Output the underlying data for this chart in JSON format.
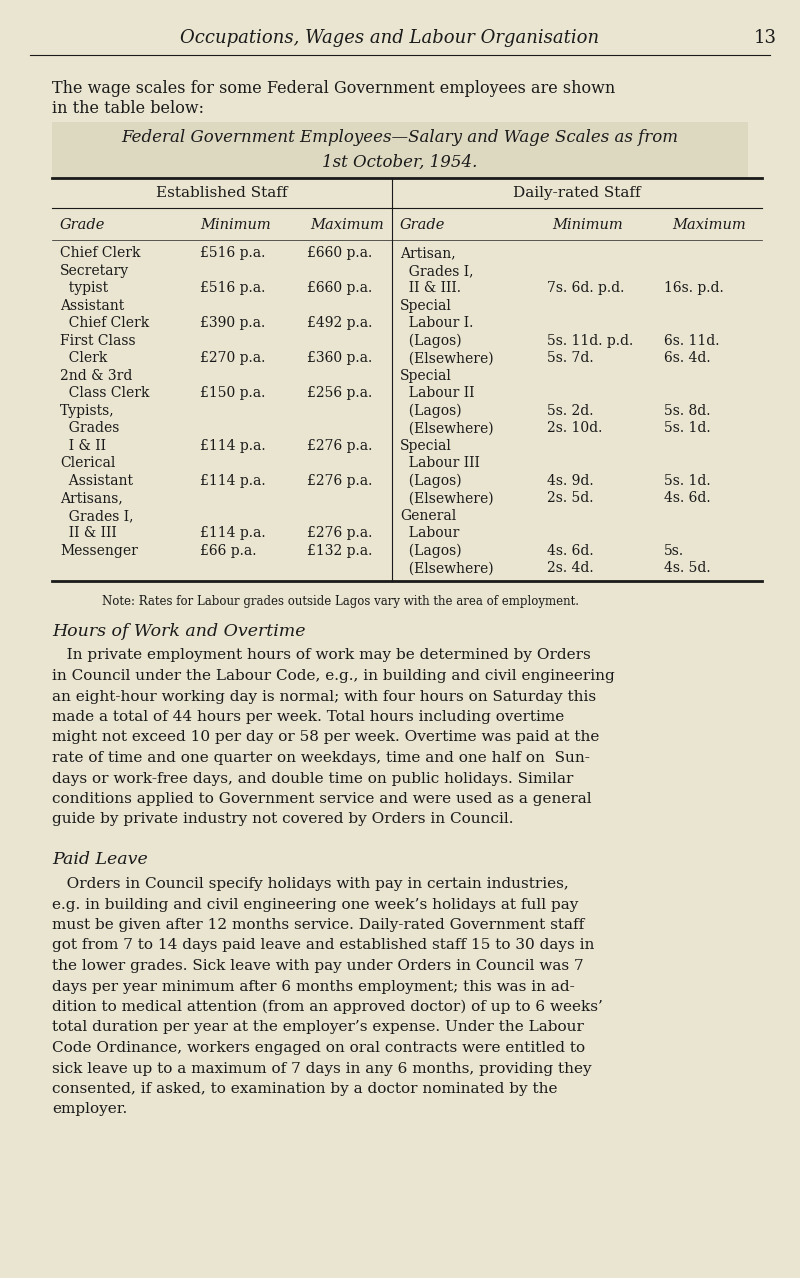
{
  "bg_color": "#EAE5D0",
  "page_title": "Occupations, Wages and Labour Organisation",
  "page_number": "13",
  "intro_text_1": "The wage scales for some Federal Government employees are shown",
  "intro_text_2": "in the table below:",
  "table_title_line1": "Federal Government Employees—Salary and Wage Scales as from",
  "table_title_line2": "1st October, 1954.",
  "col_header_left": "Established Staff",
  "col_header_right": "Daily-rated Staff",
  "established_rows": [
    [
      "Chief Clerk",
      "£516 p.a.",
      "£660 p.a."
    ],
    [
      "Secretary",
      "",
      ""
    ],
    [
      "  typist",
      "£516 p.a.",
      "£660 p.a."
    ],
    [
      "Assistant",
      "",
      ""
    ],
    [
      "  Chief Clerk",
      "£390 p.a.",
      "£492 p.a."
    ],
    [
      "First Class",
      "",
      ""
    ],
    [
      "  Clerk",
      "£270 p.a.",
      "£360 p.a."
    ],
    [
      "2nd & 3rd",
      "",
      ""
    ],
    [
      "  Class Clerk",
      "£150 p.a.",
      "£256 p.a."
    ],
    [
      "Typists,",
      "",
      ""
    ],
    [
      "  Grades",
      "",
      ""
    ],
    [
      "  I & II",
      "£114 p.a.",
      "£276 p.a."
    ],
    [
      "Clerical",
      "",
      ""
    ],
    [
      "  Assistant",
      "£114 p.a.",
      "£276 p.a."
    ],
    [
      "Artisans,",
      "",
      ""
    ],
    [
      "  Grades I,",
      "",
      ""
    ],
    [
      "  II & III",
      "£114 p.a.",
      "£276 p.a."
    ],
    [
      "Messenger",
      "£66 p.a.",
      "£132 p.a."
    ]
  ],
  "daily_rows": [
    [
      "Artisan,",
      "",
      ""
    ],
    [
      "  Grades I,",
      "",
      ""
    ],
    [
      "  II & III.",
      "7s. 6d. p.d.",
      "16s. p.d."
    ],
    [
      "Special",
      "",
      ""
    ],
    [
      "  Labour I.",
      "",
      ""
    ],
    [
      "  (Lagos)",
      "5s. 11d. p.d.",
      "6s. 11d."
    ],
    [
      "  (Elsewhere)",
      "5s. 7d.",
      "6s. 4d."
    ],
    [
      "Special",
      "",
      ""
    ],
    [
      "  Labour II",
      "",
      ""
    ],
    [
      "  (Lagos)",
      "5s. 2d.",
      "5s. 8d."
    ],
    [
      "  (Elsewhere)",
      "2s. 10d.",
      "5s. 1d."
    ],
    [
      "Special",
      "",
      ""
    ],
    [
      "  Labour III",
      "",
      ""
    ],
    [
      "  (Lagos)",
      "4s. 9d.",
      "5s. 1d."
    ],
    [
      "  (Elsewhere)",
      "2s. 5d.",
      "4s. 6d."
    ],
    [
      "General",
      "",
      ""
    ],
    [
      "  Labour",
      "",
      ""
    ],
    [
      "  (Lagos)",
      "4s. 6d.",
      "5s."
    ],
    [
      "  (Elsewhere)",
      "2s. 4d.",
      "4s. 5d."
    ]
  ],
  "note": "Note: Rates for Labour grades outside Lagos vary with the area of employment.",
  "section1_title": "Hours of Work and Overtime",
  "section1_lines": [
    "   In private employment hours of work may be determined by Orders",
    "in Council under the Labour Code, e.g., in building and civil engineering",
    "an eight-hour working day is normal; with four hours on Saturday this",
    "made a total of 44 hours per week. Total hours including overtime",
    "might not exceed 10 per day or 58 per week. Overtime was paid at the",
    "rate of time and one quarter on weekdays, time and one half on  Sun-",
    "days or work-free days, and double time on public holidays. Similar",
    "conditions applied to Government service and were used as a general",
    "guide by private industry not covered by Orders in Council."
  ],
  "section2_title": "Paid Leave",
  "section2_lines": [
    "   Orders in Council specify holidays with pay in certain industries,",
    "e.g. in building and civil engineering one week’s holidays at full pay",
    "must be given after 12 months service. Daily-rated Government staff",
    "got from 7 to 14 days paid leave and established staff 15 to 30 days in",
    "the lower grades. Sick leave with pay under Orders in Council was 7",
    "days per year minimum after 6 months employment; this was in ad-",
    "dition to medical attention (from an approved doctor) of up to 6 weeks’",
    "total duration per year at the employer’s expense. Under the Labour",
    "Code Ordinance, workers engaged on oral contracts were entitled to",
    "sick leave up to a maximum of 7 days in any 6 months, providing they",
    "consented, if asked, to examination by a doctor nominated by the",
    "employer."
  ]
}
